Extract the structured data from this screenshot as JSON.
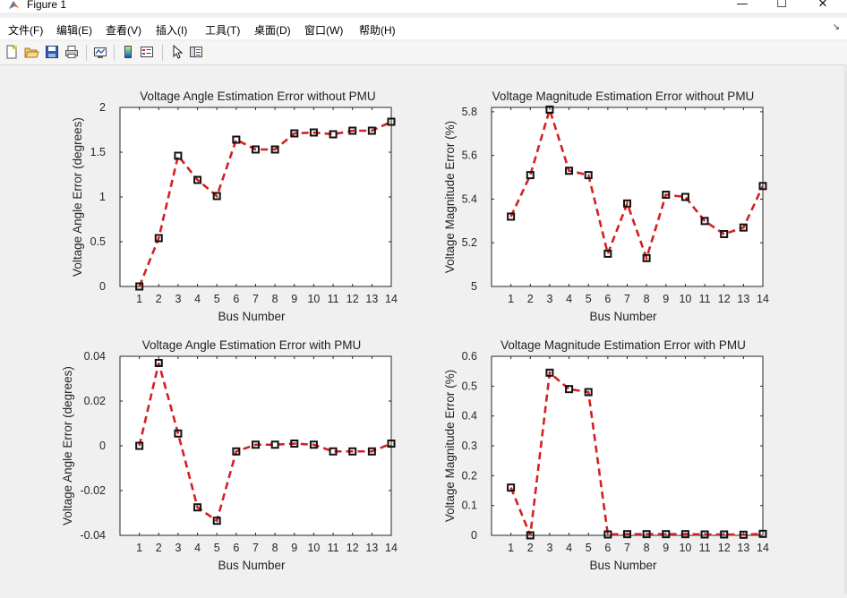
{
  "window": {
    "title": "Figure 1",
    "minimize_glyph": "—",
    "maximize_glyph": "☐",
    "close_glyph": "✕"
  },
  "menu": {
    "items": [
      "文件(F)",
      "编辑(E)",
      "查看(V)",
      "插入(I)",
      "工具(T)",
      "桌面(D)",
      "窗口(W)",
      "帮助(H)"
    ],
    "overflow_glyph": "↘"
  },
  "toolbar": {
    "icons": [
      "new-figure-icon",
      "open-file-icon",
      "save-icon",
      "print-icon",
      "link-plot-icon",
      "insert-colorbar-icon",
      "insert-legend-icon",
      "edit-plot-arrow-icon",
      "property-inspector-icon"
    ]
  },
  "style": {
    "line_color": "#d42020",
    "marker_color": "#111111",
    "axes_bg": "#ffffff",
    "figure_bg": "#f0f0f0"
  },
  "chart_data": [
    {
      "type": "line",
      "title": "Voltage Angle Estimation Error without PMU",
      "xlabel": "Bus Number",
      "ylabel": "Voltage Angle Error (degrees)",
      "x": [
        1,
        2,
        3,
        4,
        5,
        6,
        7,
        8,
        9,
        10,
        11,
        12,
        13,
        14
      ],
      "xlim": [
        0,
        14
      ],
      "ylim": [
        0,
        2
      ],
      "yticks": [
        0,
        0.5,
        1,
        1.5,
        2
      ],
      "ytick_labels": [
        "0",
        "0.5",
        "1",
        "1.5",
        "2"
      ],
      "values": [
        0,
        0.54,
        1.46,
        1.19,
        1.01,
        1.64,
        1.53,
        1.53,
        1.71,
        1.72,
        1.7,
        1.74,
        1.74,
        1.84
      ],
      "grid": false
    },
    {
      "type": "line",
      "title": "Voltage Magnitude Estimation Error without PMU",
      "xlabel": "Bus Number",
      "ylabel": "Voltage Magnitude Error (%)",
      "x": [
        1,
        2,
        3,
        4,
        5,
        6,
        7,
        8,
        9,
        10,
        11,
        12,
        13,
        14
      ],
      "xlim": [
        0,
        14
      ],
      "ylim": [
        5,
        5.82
      ],
      "yticks": [
        5,
        5.2,
        5.4,
        5.6,
        5.8
      ],
      "ytick_labels": [
        "5",
        "5.2",
        "5.4",
        "5.6",
        "5.8"
      ],
      "values": [
        5.32,
        5.51,
        5.81,
        5.53,
        5.51,
        5.15,
        5.38,
        5.13,
        5.42,
        5.41,
        5.3,
        5.24,
        5.27,
        5.46
      ],
      "grid": false
    },
    {
      "type": "line",
      "title": "Voltage Angle Estimation Error with PMU",
      "xlabel": "Bus Number",
      "ylabel": "Voltage Angle Error (degrees)",
      "x": [
        1,
        2,
        3,
        4,
        5,
        6,
        7,
        8,
        9,
        10,
        11,
        12,
        13,
        14
      ],
      "xlim": [
        0,
        14
      ],
      "ylim": [
        -0.04,
        0.04
      ],
      "yticks": [
        -0.04,
        -0.02,
        0,
        0.02,
        0.04
      ],
      "ytick_labels": [
        "-0.04",
        "-0.02",
        "0",
        "0.02",
        "0.04"
      ],
      "values": [
        0.0,
        0.037,
        0.0055,
        -0.0275,
        -0.0335,
        -0.0025,
        0.0005,
        0.0005,
        0.001,
        0.0005,
        -0.0025,
        -0.0025,
        -0.0025,
        0.001
      ],
      "grid": false
    },
    {
      "type": "line",
      "title": "Voltage Magnitude Estimation Error with PMU",
      "xlabel": "Bus Number",
      "ylabel": "Voltage Magnitude Error (%)",
      "x": [
        1,
        2,
        3,
        4,
        5,
        6,
        7,
        8,
        9,
        10,
        11,
        12,
        13,
        14
      ],
      "xlim": [
        0,
        14
      ],
      "ylim": [
        0,
        0.6
      ],
      "yticks": [
        0,
        0.1,
        0.2,
        0.3,
        0.4,
        0.5,
        0.6
      ],
      "ytick_labels": [
        "0",
        "0.1",
        "0.2",
        "0.3",
        "0.4",
        "0.5",
        "0.6"
      ],
      "values": [
        0.16,
        0.0,
        0.545,
        0.49,
        0.48,
        0.003,
        0.004,
        0.004,
        0.004,
        0.004,
        0.003,
        0.003,
        0.002,
        0.005
      ],
      "grid": false
    }
  ]
}
